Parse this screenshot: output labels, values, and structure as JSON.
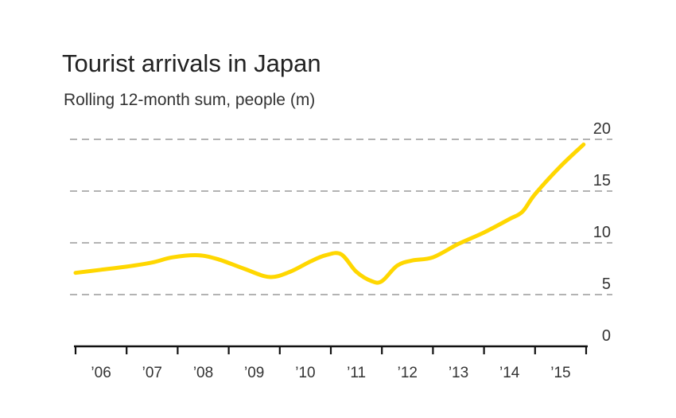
{
  "chart_data": {
    "type": "line",
    "title": "Tourist arrivals in Japan",
    "subtitle": "Rolling 12-month sum, people (m)",
    "xlabel": "",
    "ylabel": "",
    "ylim": [
      0,
      20
    ],
    "xlim": [
      2006,
      2016
    ],
    "yticks": [
      {
        "value": 0,
        "label": "0"
      },
      {
        "value": 5,
        "label": "5"
      },
      {
        "value": 10,
        "label": "10"
      },
      {
        "value": 15,
        "label": "15"
      },
      {
        "value": 20,
        "label": "20"
      }
    ],
    "xticks": [
      {
        "value": 2006.5,
        "label": "’06"
      },
      {
        "value": 2007.5,
        "label": "’07"
      },
      {
        "value": 2008.5,
        "label": "’08"
      },
      {
        "value": 2009.5,
        "label": "’09"
      },
      {
        "value": 2010.5,
        "label": "’10"
      },
      {
        "value": 2011.5,
        "label": "’11"
      },
      {
        "value": 2012.5,
        "label": "’12"
      },
      {
        "value": 2013.5,
        "label": "’13"
      },
      {
        "value": 2014.5,
        "label": "’14"
      },
      {
        "value": 2015.5,
        "label": "’15"
      }
    ],
    "year_boundaries": [
      2006,
      2007,
      2008,
      2009,
      2010,
      2011,
      2012,
      2013,
      2014,
      2015,
      2016
    ],
    "grid": true,
    "line_color": "#FFD700",
    "series": [
      {
        "name": "",
        "x": [
          2006.0,
          2006.5,
          2007.0,
          2007.5,
          2007.9,
          2008.4,
          2008.8,
          2009.3,
          2009.8,
          2010.2,
          2010.6,
          2010.9,
          2011.2,
          2011.5,
          2011.8,
          2012.0,
          2012.3,
          2012.6,
          2013.0,
          2013.5,
          2014.0,
          2014.5,
          2014.75,
          2015.0,
          2015.5,
          2015.95
        ],
        "y": [
          7.1,
          7.4,
          7.7,
          8.1,
          8.6,
          8.8,
          8.4,
          7.5,
          6.7,
          7.2,
          8.2,
          8.8,
          8.9,
          7.2,
          6.3,
          6.3,
          7.8,
          8.3,
          8.6,
          9.9,
          11.0,
          12.3,
          13.0,
          14.7,
          17.4,
          19.5
        ]
      }
    ]
  }
}
